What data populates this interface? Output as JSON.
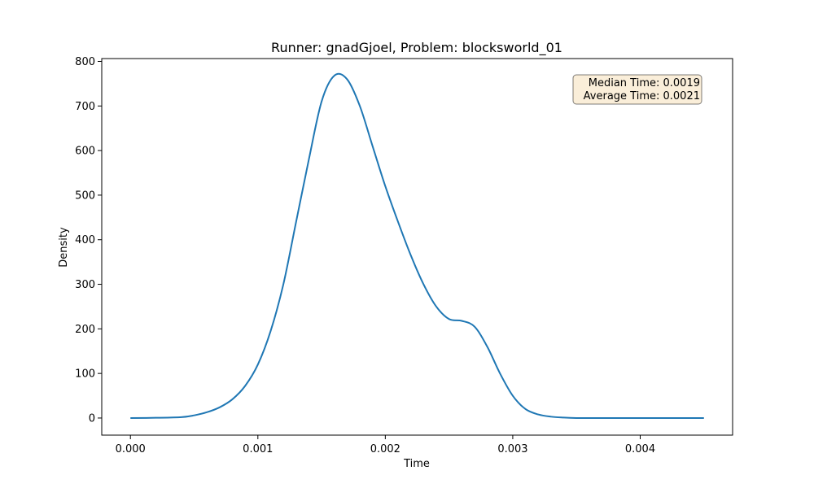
{
  "chart_data": {
    "type": "line",
    "title": "Runner: gnadGjoel, Problem: blocksworld_01",
    "xlabel": "Time",
    "ylabel": "Density",
    "xlim": [
      -0.000225,
      0.004725
    ],
    "ylim": [
      -38.4,
      806.4
    ],
    "xticks": [
      "0.000",
      "0.001",
      "0.002",
      "0.003",
      "0.004"
    ],
    "xtick_values": [
      0.0,
      0.001,
      0.002,
      0.003,
      0.004
    ],
    "yticks": [
      "0",
      "100",
      "200",
      "300",
      "400",
      "500",
      "600",
      "700",
      "800"
    ],
    "ytick_values": [
      0,
      100,
      200,
      300,
      400,
      500,
      600,
      700,
      800
    ],
    "grid": false,
    "series": [
      {
        "color": "#1f77b4",
        "x": [
          0.0,
          0.0002,
          0.0004,
          0.0005,
          0.0006,
          0.0007,
          0.0008,
          0.0009,
          0.001,
          0.0011,
          0.0012,
          0.0013,
          0.0014,
          0.0015,
          0.0016,
          0.0017,
          0.0018,
          0.0019,
          0.002,
          0.0021,
          0.0022,
          0.0023,
          0.0024,
          0.0025,
          0.0026,
          0.0027,
          0.0028,
          0.0029,
          0.003,
          0.0031,
          0.0032,
          0.0033,
          0.0034,
          0.0035,
          0.0036,
          0.0037,
          0.0038,
          0.004,
          0.0042,
          0.0045
        ],
        "y": [
          0,
          0.5,
          2,
          6,
          13,
          24,
          42,
          72,
          120,
          195,
          300,
          440,
          580,
          710,
          768,
          760,
          700,
          610,
          520,
          440,
          365,
          300,
          250,
          222,
          218,
          205,
          160,
          100,
          50,
          20,
          8,
          3,
          1,
          0,
          0,
          0,
          0,
          0,
          0,
          0
        ]
      }
    ],
    "annotation": {
      "lines": [
        "Median Time: 0.0019",
        "Average Time: 0.0021"
      ],
      "placement": "top-right",
      "background": "#f5deb3"
    }
  }
}
